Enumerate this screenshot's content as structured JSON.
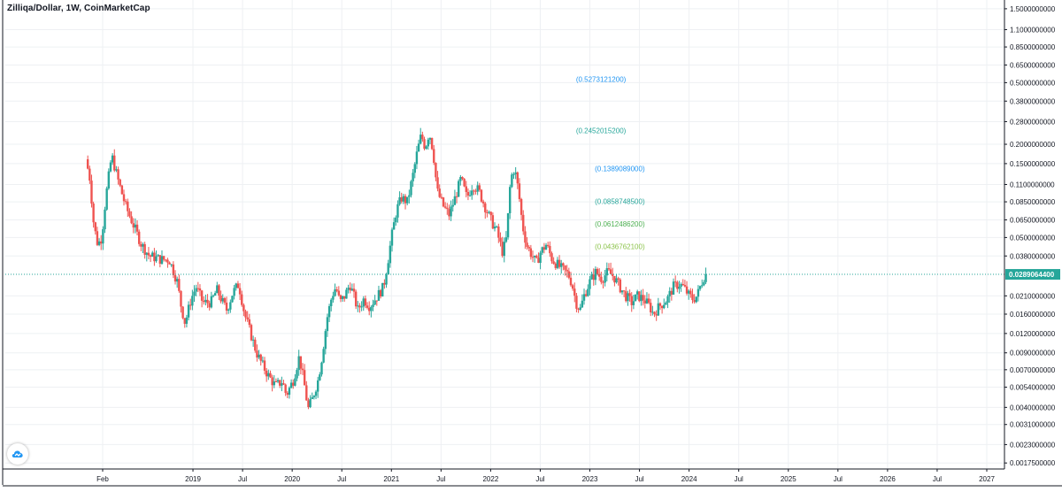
{
  "chart_data": {
    "type": "candlestick",
    "title": "Zilliqa/Dollar, 1W, CoinMarketCap",
    "y_scale": "log",
    "ylim": [
      0.0016,
      1.6
    ],
    "y_ticks": [
      "1.5000000000",
      "1.1000000000",
      "0.8500000000",
      "0.6500000000",
      "0.5000000000",
      "0.3800000000",
      "0.2800000000",
      "0.2000000000",
      "0.1500000000",
      "0.1100000000",
      "0.0850000000",
      "0.0650000000",
      "0.0500000000",
      "0.0380000000",
      "0.0210000000",
      "0.0160000000",
      "0.0120000000",
      "0.0090000000",
      "0.0070000000",
      "0.0054000000",
      "0.0040000000",
      "0.0031000000",
      "0.0023000000",
      "0.0017500000"
    ],
    "x_ticks": [
      "Feb",
      "2019",
      "Jul",
      "2020",
      "Jul",
      "2021",
      "Jul",
      "2022",
      "Jul",
      "2023",
      "Jul",
      "2024",
      "Jul",
      "2025",
      "Jul",
      "2026",
      "Jul",
      "2027"
    ],
    "x_tick_dates": [
      2018.09,
      2019.0,
      2019.5,
      2020.0,
      2020.5,
      2021.0,
      2021.5,
      2022.0,
      2022.5,
      2023.0,
      2023.5,
      2024.0,
      2024.5,
      2025.0,
      2025.5,
      2026.0,
      2026.5,
      2027.0
    ],
    "x_range": [
      2017.98,
      2027.18
    ],
    "current_price": {
      "value": 0.02890644,
      "label": "0.0289064400",
      "color": "#26a69a"
    },
    "annotations": [
      {
        "label": "(0.5273121200)",
        "value": 0.52731212,
        "x": 2022.86,
        "color": "#2196f3"
      },
      {
        "label": "(0.2452015200)",
        "value": 0.24520152,
        "x": 2022.86,
        "color": "#26a69a"
      },
      {
        "label": "(0.1389089000)",
        "value": 0.1389089,
        "x": 2023.05,
        "color": "#2196f3"
      },
      {
        "label": "(0.0858748500)",
        "value": 0.08587485,
        "x": 2023.05,
        "color": "#26a69a"
      },
      {
        "label": "(0.0612486200)",
        "value": 0.06124862,
        "x": 2023.05,
        "color": "#4caf50"
      },
      {
        "label": "(0.0436762100)",
        "value": 0.04367621,
        "x": 2023.05,
        "color": "#8bc34a"
      }
    ],
    "up_color": "#26a69a",
    "down_color": "#ef5350",
    "grid": true,
    "price_path": [
      [
        2017.94,
        0.16
      ],
      [
        2017.98,
        0.12
      ],
      [
        2018.02,
        0.06
      ],
      [
        2018.06,
        0.045
      ],
      [
        2018.1,
        0.05
      ],
      [
        2018.14,
        0.09
      ],
      [
        2018.2,
        0.17
      ],
      [
        2018.26,
        0.12
      ],
      [
        2018.34,
        0.08
      ],
      [
        2018.42,
        0.06
      ],
      [
        2018.5,
        0.045
      ],
      [
        2018.58,
        0.038
      ],
      [
        2018.7,
        0.036
      ],
      [
        2018.78,
        0.036
      ],
      [
        2018.86,
        0.026
      ],
      [
        2018.9,
        0.018
      ],
      [
        2018.94,
        0.014
      ],
      [
        2019.0,
        0.02
      ],
      [
        2019.05,
        0.024
      ],
      [
        2019.12,
        0.019
      ],
      [
        2019.2,
        0.019
      ],
      [
        2019.26,
        0.023
      ],
      [
        2019.32,
        0.019
      ],
      [
        2019.36,
        0.017
      ],
      [
        2019.42,
        0.022
      ],
      [
        2019.48,
        0.025
      ],
      [
        2019.54,
        0.016
      ],
      [
        2019.6,
        0.012
      ],
      [
        2019.66,
        0.009
      ],
      [
        2019.72,
        0.0075
      ],
      [
        2019.78,
        0.0064
      ],
      [
        2019.85,
        0.0055
      ],
      [
        2019.92,
        0.0059
      ],
      [
        2019.96,
        0.0048
      ],
      [
        2020.03,
        0.006
      ],
      [
        2020.09,
        0.0085
      ],
      [
        2020.14,
        0.0057
      ],
      [
        2020.18,
        0.0039
      ],
      [
        2020.22,
        0.0045
      ],
      [
        2020.28,
        0.006
      ],
      [
        2020.32,
        0.0085
      ],
      [
        2020.37,
        0.015
      ],
      [
        2020.42,
        0.021
      ],
      [
        2020.46,
        0.024
      ],
      [
        2020.5,
        0.019
      ],
      [
        2020.55,
        0.021
      ],
      [
        2020.6,
        0.025
      ],
      [
        2020.64,
        0.021
      ],
      [
        2020.68,
        0.017
      ],
      [
        2020.74,
        0.02
      ],
      [
        2020.8,
        0.018
      ],
      [
        2020.88,
        0.021
      ],
      [
        2020.94,
        0.024
      ],
      [
        2020.98,
        0.034
      ],
      [
        2021.02,
        0.05
      ],
      [
        2021.07,
        0.075
      ],
      [
        2021.12,
        0.09
      ],
      [
        2021.18,
        0.085
      ],
      [
        2021.24,
        0.13
      ],
      [
        2021.28,
        0.18
      ],
      [
        2021.32,
        0.23
      ],
      [
        2021.36,
        0.19
      ],
      [
        2021.4,
        0.24
      ],
      [
        2021.44,
        0.18
      ],
      [
        2021.48,
        0.1
      ],
      [
        2021.54,
        0.08
      ],
      [
        2021.6,
        0.07
      ],
      [
        2021.66,
        0.09
      ],
      [
        2021.72,
        0.12
      ],
      [
        2021.78,
        0.09
      ],
      [
        2021.84,
        0.11
      ],
      [
        2021.9,
        0.1
      ],
      [
        2021.96,
        0.08
      ],
      [
        2022.02,
        0.065
      ],
      [
        2022.08,
        0.055
      ],
      [
        2022.14,
        0.04
      ],
      [
        2022.18,
        0.05
      ],
      [
        2022.22,
        0.12
      ],
      [
        2022.26,
        0.14
      ],
      [
        2022.3,
        0.1
      ],
      [
        2022.34,
        0.06
      ],
      [
        2022.38,
        0.045
      ],
      [
        2022.42,
        0.04
      ],
      [
        2022.48,
        0.034
      ],
      [
        2022.52,
        0.04
      ],
      [
        2022.58,
        0.045
      ],
      [
        2022.64,
        0.036
      ],
      [
        2022.72,
        0.032
      ],
      [
        2022.8,
        0.029
      ],
      [
        2022.84,
        0.025
      ],
      [
        2022.88,
        0.019
      ],
      [
        2022.92,
        0.017
      ],
      [
        2022.96,
        0.021
      ],
      [
        2023.02,
        0.026
      ],
      [
        2023.08,
        0.03
      ],
      [
        2023.14,
        0.027
      ],
      [
        2023.2,
        0.03
      ],
      [
        2023.26,
        0.028
      ],
      [
        2023.32,
        0.024
      ],
      [
        2023.38,
        0.021
      ],
      [
        2023.44,
        0.019
      ],
      [
        2023.5,
        0.021
      ],
      [
        2023.56,
        0.02
      ],
      [
        2023.62,
        0.018
      ],
      [
        2023.66,
        0.016
      ],
      [
        2023.72,
        0.018
      ],
      [
        2023.8,
        0.02
      ],
      [
        2023.86,
        0.024
      ],
      [
        2023.92,
        0.025
      ],
      [
        2023.96,
        0.024
      ],
      [
        2024.02,
        0.021
      ],
      [
        2024.06,
        0.02
      ],
      [
        2024.1,
        0.021
      ],
      [
        2024.14,
        0.025
      ],
      [
        2024.18,
        0.029
      ]
    ]
  }
}
